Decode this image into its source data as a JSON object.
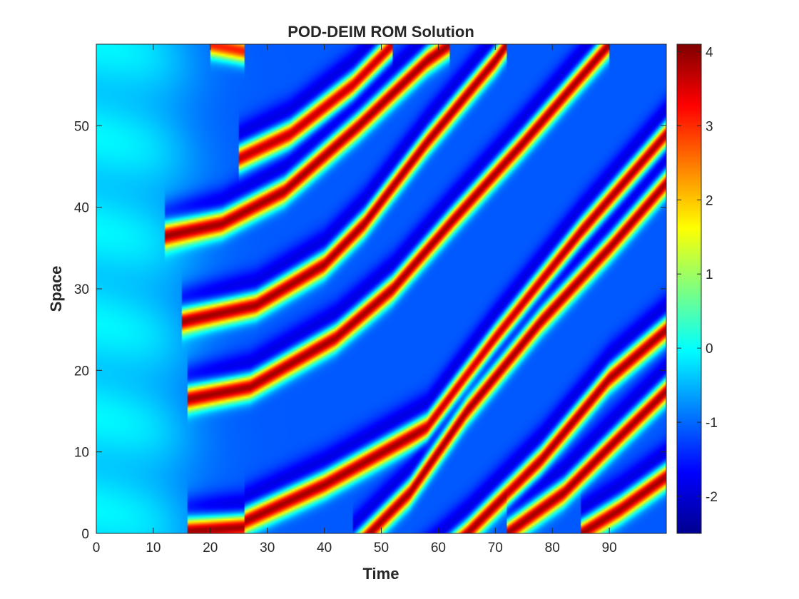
{
  "chart_data": {
    "type": "heatmap",
    "title": "POD-DEIM ROM Solution",
    "xlabel": "Time",
    "ylabel": "Space",
    "xlim": [
      0,
      100
    ],
    "ylim": [
      0,
      60
    ],
    "x_ticks": [
      0,
      10,
      20,
      30,
      40,
      50,
      60,
      70,
      80,
      90
    ],
    "y_ticks": [
      0,
      10,
      20,
      30,
      40,
      50
    ],
    "colorbar": {
      "colormap": "jet",
      "clim": [
        -2.5,
        4.1
      ],
      "ticks": [
        -2,
        -1,
        0,
        1,
        2,
        3,
        4
      ],
      "colors": [
        "#00008f",
        "#0000ff",
        "#00ffff",
        "#ffff00",
        "#ff0000",
        "#800000"
      ]
    },
    "background_value": -1.1,
    "initial_region_value": -0.2,
    "ridges": [
      {
        "peak": 4.0,
        "points": [
          [
            16,
            0.3
          ],
          [
            26,
            0.8
          ]
        ]
      },
      {
        "peak": 4.0,
        "points": [
          [
            26,
            1.5
          ],
          [
            40,
            6
          ],
          [
            58,
            13
          ],
          [
            70,
            24
          ],
          [
            85,
            37
          ],
          [
            100,
            49
          ]
        ]
      },
      {
        "peak": 4.0,
        "points": [
          [
            16,
            16.5
          ],
          [
            27,
            18
          ],
          [
            42,
            24
          ],
          [
            52,
            30
          ],
          [
            62,
            38
          ],
          [
            75,
            48
          ],
          [
            90,
            60
          ]
        ]
      },
      {
        "peak": 4.0,
        "points": [
          [
            15,
            26
          ],
          [
            28,
            28
          ],
          [
            40,
            33
          ],
          [
            47,
            38
          ],
          [
            58,
            48
          ],
          [
            70,
            58
          ],
          [
            72,
            60
          ]
        ]
      },
      {
        "peak": 4.0,
        "points": [
          [
            12,
            36.5
          ],
          [
            22,
            38
          ],
          [
            33,
            42
          ],
          [
            46,
            50
          ],
          [
            58,
            58
          ],
          [
            62,
            60
          ]
        ]
      },
      {
        "peak": 3.8,
        "points": [
          [
            25,
            46
          ],
          [
            34,
            49
          ],
          [
            45,
            55
          ],
          [
            52,
            60
          ]
        ]
      },
      {
        "peak": 3.2,
        "points": [
          [
            20,
            60
          ],
          [
            26,
            59.2
          ]
        ]
      },
      {
        "peak": 4.0,
        "points": [
          [
            45,
            -2
          ],
          [
            55,
            5
          ],
          [
            65,
            15
          ],
          [
            78,
            26
          ],
          [
            90,
            35
          ],
          [
            100,
            43
          ]
        ]
      },
      {
        "peak": 4.0,
        "points": [
          [
            55,
            -6
          ],
          [
            65,
            0
          ],
          [
            78,
            9
          ],
          [
            90,
            19
          ],
          [
            100,
            25
          ]
        ]
      },
      {
        "peak": 4.0,
        "points": [
          [
            72,
            0
          ],
          [
            82,
            5
          ],
          [
            92,
            12
          ],
          [
            100,
            17.5
          ]
        ]
      },
      {
        "peak": 4.0,
        "points": [
          [
            85,
            0
          ],
          [
            92,
            3
          ],
          [
            100,
            7
          ]
        ]
      }
    ]
  }
}
